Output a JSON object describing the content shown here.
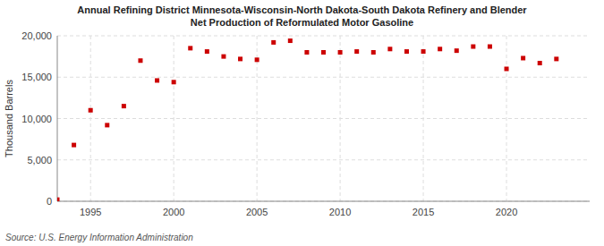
{
  "chart_data": {
    "type": "scatter",
    "title": "Annual Refining District Minnesota-Wisconsin-North Dakota-South Dakota Refinery and Blender\nNet Production of Reformulated Motor Gasoline",
    "y_label": "Thousand Barrels",
    "annotations": [
      "Source: U.S. Energy Information Administration"
    ],
    "x": [
      1993,
      1994,
      1995,
      1996,
      1997,
      1998,
      1999,
      2000,
      2001,
      2002,
      2003,
      2004,
      2005,
      2006,
      2007,
      2008,
      2009,
      2010,
      2011,
      2012,
      2013,
      2014,
      2015,
      2016,
      2017,
      2018,
      2019,
      2020,
      2021,
      2022,
      2023
    ],
    "values": [
      200,
      6800,
      11000,
      9200,
      11500,
      17000,
      14600,
      14400,
      18500,
      18100,
      17500,
      17200,
      17100,
      19200,
      19400,
      18000,
      18000,
      18000,
      18100,
      18000,
      18400,
      18100,
      18100,
      18400,
      18200,
      18700,
      18700,
      16000,
      17300,
      16700,
      17200
    ],
    "color": "#cc0000",
    "marker": "square",
    "xlim": [
      1993,
      2025
    ],
    "xticks": [
      1995,
      2000,
      2005,
      2010,
      2015,
      2020
    ],
    "ylim": [
      0,
      20000
    ],
    "yticks": [
      0,
      {
        "value": 5000,
        "label": "5,000"
      },
      {
        "value": 10000,
        "label": "10,000"
      },
      {
        "value": 15000,
        "label": "15,000"
      },
      {
        "value": 20000,
        "label": "20,000"
      }
    ],
    "grid": true
  }
}
